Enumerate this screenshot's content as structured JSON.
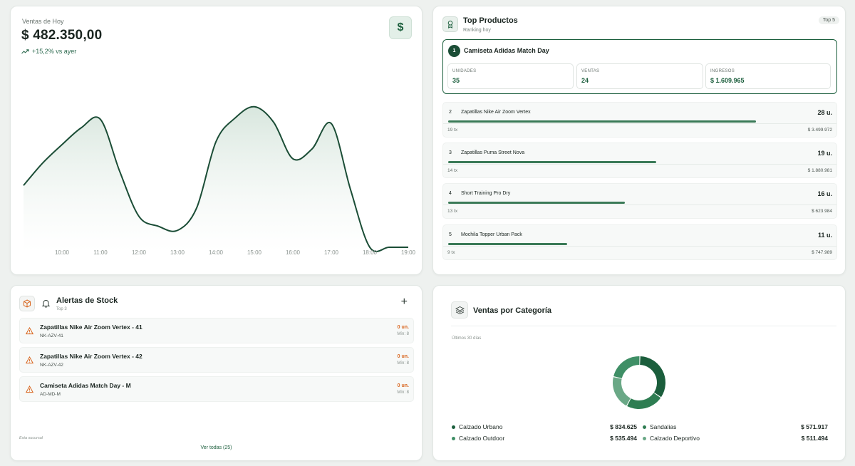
{
  "sales": {
    "label": "Ventas de Hoy",
    "amount": "$ 482.350,00",
    "delta": "+15,2% vs ayer",
    "currency_icon": "$",
    "chart_data": {
      "type": "area",
      "categories": [
        "10:00",
        "11:00",
        "12:00",
        "13:00",
        "14:00",
        "15:00",
        "16:00",
        "17:00",
        "18:00",
        "19:00"
      ],
      "x": [
        9.0,
        9.5,
        10.0,
        10.5,
        11.0,
        11.5,
        12.0,
        12.5,
        13.0,
        13.5,
        14.0,
        14.5,
        15.0,
        15.5,
        16.0,
        16.5,
        17.0,
        17.5,
        18.0,
        18.5,
        19.0
      ],
      "values": [
        46,
        62,
        75,
        87,
        93,
        56,
        24,
        17,
        14,
        30,
        77,
        94,
        102,
        91,
        65,
        72,
        90,
        43,
        2,
        2,
        2
      ],
      "line_color": "#1b4d36",
      "fill_color": "#e1ebe5"
    }
  },
  "top_products": {
    "title": "Top Productos",
    "subtitle": "Ranking hoy",
    "badge": "Top 5",
    "first": {
      "rank": "1",
      "name": "Camiseta Adidas Match Day",
      "stats": [
        {
          "label": "UNIDADES",
          "value": "35"
        },
        {
          "label": "VENTAS",
          "value": "24"
        },
        {
          "label": "INGRESOS",
          "value": "$ 1.609.965"
        }
      ]
    },
    "items": [
      {
        "rank": "2",
        "name": "Zapatillas Nike Air Zoom Vertex",
        "units": "28 u.",
        "tx": "19 tx",
        "revenue": "$ 3.499.972",
        "share": 0.8
      },
      {
        "rank": "3",
        "name": "Zapatillas Puma Street Nova",
        "units": "19 u.",
        "tx": "14 tx",
        "revenue": "$ 1.880.981",
        "share": 0.54
      },
      {
        "rank": "4",
        "name": "Short Training Pro Dry",
        "units": "16 u.",
        "tx": "13 tx",
        "revenue": "$ 623.984",
        "share": 0.46
      },
      {
        "rank": "5",
        "name": "Mochila Topper Urban Pack",
        "units": "11 u.",
        "tx": "9 tx",
        "revenue": "$ 747.989",
        "share": 0.31
      }
    ]
  },
  "stock": {
    "title": "Alertas de Stock",
    "subtitle": "Top 3",
    "add_label": "+",
    "alerts": [
      {
        "name": "Zapatillas Nike Air Zoom Vertex - 41",
        "sku": "NK-AZV-41",
        "qty": "0 un.",
        "min": "Mín: 8"
      },
      {
        "name": "Zapatillas Nike Air Zoom Vertex - 42",
        "sku": "NK-AZV-42",
        "qty": "0 un.",
        "min": "Mín: 8"
      },
      {
        "name": "Camiseta Adidas Match Day - M",
        "sku": "AD-MD-M",
        "qty": "0 un.",
        "min": "Mín: 8"
      }
    ],
    "branch": "Esta sucursal",
    "view_all": "Ver todas (25)",
    "warning_color": "#d9661f"
  },
  "categories": {
    "title": "Ventas por Categoría",
    "period": "Últimos 30 días",
    "chart_data": {
      "type": "pie",
      "series": [
        {
          "name": "Calzado Urbano",
          "value": 834625,
          "label": "$ 834.625",
          "color": "#1b5e3c"
        },
        {
          "name": "Sandalias",
          "value": 571917,
          "label": "$ 571.917",
          "color": "#2e7d52"
        },
        {
          "name": "Calzado Deportivo",
          "value": 511494,
          "label": "$ 511.494",
          "color": "#6aa886"
        },
        {
          "name": "Calzado Outdoor",
          "value": 535494,
          "label": "$ 535.494",
          "color": "#3f8f66"
        }
      ]
    }
  }
}
